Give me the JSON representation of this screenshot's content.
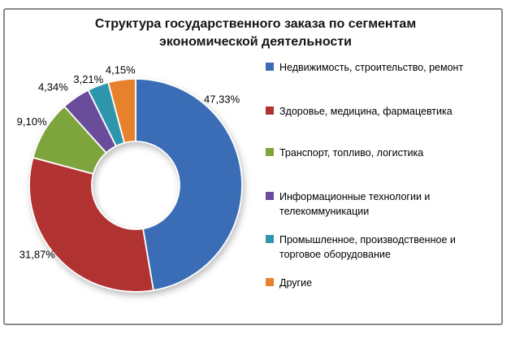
{
  "chart_data": {
    "type": "pie",
    "subtype": "donut",
    "title": "Структура государственного заказа по сегментам экономической деятельности",
    "title_lines": [
      "Структура государственного заказа по сегментам",
      "экономической деятельности"
    ],
    "categories": [
      "Недвижимость, строительство, ремонт",
      "Здоровье, медицина, фармацевтика",
      "Транспорт, топливо, логистика",
      "Информационные технологии и телекоммуникации",
      "Промышленное, производственное и торговое оборудование",
      "Другие"
    ],
    "values": [
      47.33,
      31.87,
      9.1,
      4.34,
      3.21,
      4.15
    ],
    "labels": [
      "47,33%",
      "31,87%",
      "9,10%",
      "4,34%",
      "3,21%",
      "4,15%"
    ],
    "colors": [
      "#3A6DB5",
      "#B13331",
      "#7EA43E",
      "#694D9B",
      "#2E96AC",
      "#E8812C"
    ],
    "legend_position": "right",
    "donut_hole_ratio": 0.41,
    "start_angle_deg": 0,
    "direction": "clockwise",
    "frame_border_color": "#8a8a8a",
    "background_color": "#ffffff",
    "title_color": "#141414",
    "label_color": "#000000"
  }
}
